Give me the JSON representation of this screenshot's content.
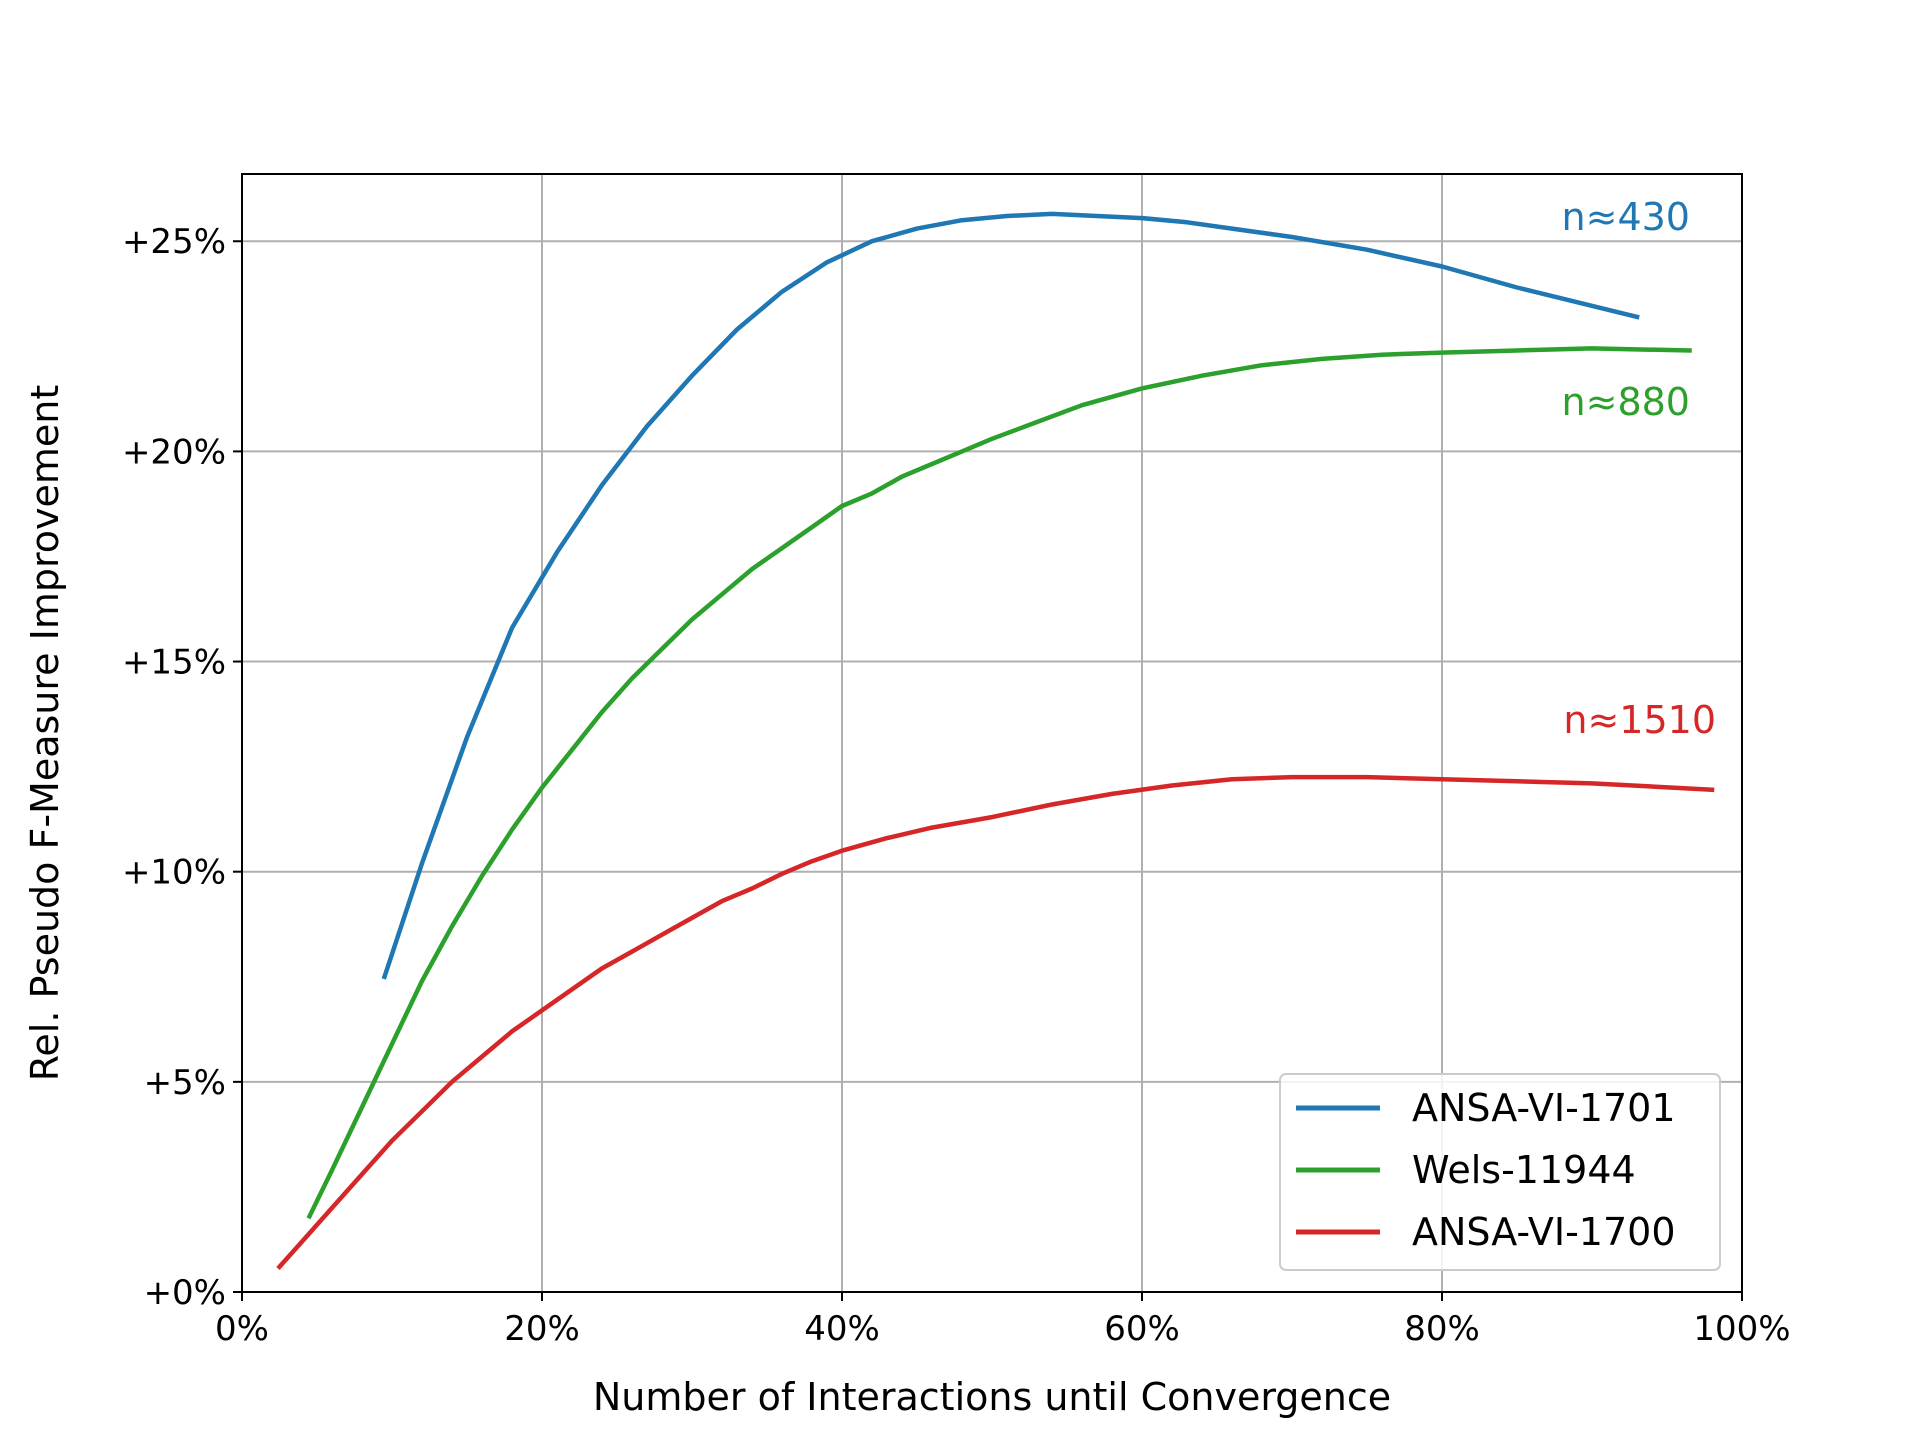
{
  "chart_data": {
    "type": "line",
    "xlabel": "Number of Interactions until Convergence",
    "ylabel": "Rel. Pseudo F-Measure Improvement",
    "xlim": [
      0,
      100
    ],
    "ylim": [
      0,
      26.6
    ],
    "grid": true,
    "legend_position": "lower-right",
    "x_ticks": [
      {
        "value": 0,
        "label": "0%"
      },
      {
        "value": 20,
        "label": "20%"
      },
      {
        "value": 40,
        "label": "40%"
      },
      {
        "value": 60,
        "label": "60%"
      },
      {
        "value": 80,
        "label": "80%"
      },
      {
        "value": 100,
        "label": "100%"
      }
    ],
    "y_ticks": [
      {
        "value": 0,
        "label": "+0%"
      },
      {
        "value": 5,
        "label": "+5%"
      },
      {
        "value": 10,
        "label": "+10%"
      },
      {
        "value": 15,
        "label": "+15%"
      },
      {
        "value": 20,
        "label": "+20%"
      },
      {
        "value": 25,
        "label": "+25%"
      }
    ],
    "series": [
      {
        "name": "ANSA-VI-1701",
        "color": "#1f77b4",
        "annotation": "n≈430",
        "points": [
          [
            9.5,
            7.5
          ],
          [
            12,
            10.2
          ],
          [
            15,
            13.2
          ],
          [
            18,
            15.8
          ],
          [
            21,
            17.6
          ],
          [
            24,
            19.2
          ],
          [
            27,
            20.6
          ],
          [
            30,
            21.8
          ],
          [
            33,
            22.9
          ],
          [
            36,
            23.8
          ],
          [
            39,
            24.5
          ],
          [
            42,
            25.0
          ],
          [
            45,
            25.3
          ],
          [
            48,
            25.5
          ],
          [
            51,
            25.6
          ],
          [
            54,
            25.65
          ],
          [
            57,
            25.6
          ],
          [
            60,
            25.55
          ],
          [
            63,
            25.45
          ],
          [
            66,
            25.3
          ],
          [
            70,
            25.1
          ],
          [
            75,
            24.8
          ],
          [
            80,
            24.4
          ],
          [
            85,
            23.9
          ],
          [
            93,
            23.2
          ]
        ]
      },
      {
        "name": "Wels-11944",
        "color": "#2ca02c",
        "annotation": "n≈880",
        "points": [
          [
            4.5,
            1.8
          ],
          [
            6,
            2.9
          ],
          [
            8,
            4.4
          ],
          [
            10,
            5.9
          ],
          [
            12,
            7.4
          ],
          [
            14,
            8.7
          ],
          [
            16,
            9.9
          ],
          [
            18,
            11.0
          ],
          [
            20,
            12.0
          ],
          [
            22,
            12.9
          ],
          [
            24,
            13.8
          ],
          [
            26,
            14.6
          ],
          [
            28,
            15.3
          ],
          [
            30,
            16.0
          ],
          [
            32,
            16.6
          ],
          [
            34,
            17.2
          ],
          [
            36,
            17.7
          ],
          [
            38,
            18.2
          ],
          [
            40,
            18.7
          ],
          [
            42,
            19.0
          ],
          [
            44,
            19.4
          ],
          [
            46,
            19.7
          ],
          [
            48,
            20.0
          ],
          [
            50,
            20.3
          ],
          [
            53,
            20.7
          ],
          [
            56,
            21.1
          ],
          [
            60,
            21.5
          ],
          [
            64,
            21.8
          ],
          [
            68,
            22.05
          ],
          [
            72,
            22.2
          ],
          [
            76,
            22.3
          ],
          [
            80,
            22.35
          ],
          [
            85,
            22.4
          ],
          [
            90,
            22.45
          ],
          [
            96.5,
            22.4
          ]
        ]
      },
      {
        "name": "ANSA-VI-1700",
        "color": "#d62728",
        "annotation": "n≈1510",
        "points": [
          [
            2.5,
            0.6
          ],
          [
            4,
            1.2
          ],
          [
            6,
            2.0
          ],
          [
            8,
            2.8
          ],
          [
            10,
            3.6
          ],
          [
            12,
            4.3
          ],
          [
            14,
            5.0
          ],
          [
            16,
            5.6
          ],
          [
            18,
            6.2
          ],
          [
            20,
            6.7
          ],
          [
            22,
            7.2
          ],
          [
            24,
            7.7
          ],
          [
            26,
            8.1
          ],
          [
            28,
            8.5
          ],
          [
            30,
            8.9
          ],
          [
            32,
            9.3
          ],
          [
            34,
            9.6
          ],
          [
            36,
            9.95
          ],
          [
            38,
            10.25
          ],
          [
            40,
            10.5
          ],
          [
            43,
            10.8
          ],
          [
            46,
            11.05
          ],
          [
            50,
            11.3
          ],
          [
            54,
            11.6
          ],
          [
            58,
            11.85
          ],
          [
            62,
            12.05
          ],
          [
            66,
            12.2
          ],
          [
            70,
            12.25
          ],
          [
            75,
            12.25
          ],
          [
            80,
            12.2
          ],
          [
            85,
            12.15
          ],
          [
            90,
            12.1
          ],
          [
            98,
            11.95
          ]
        ]
      }
    ]
  }
}
